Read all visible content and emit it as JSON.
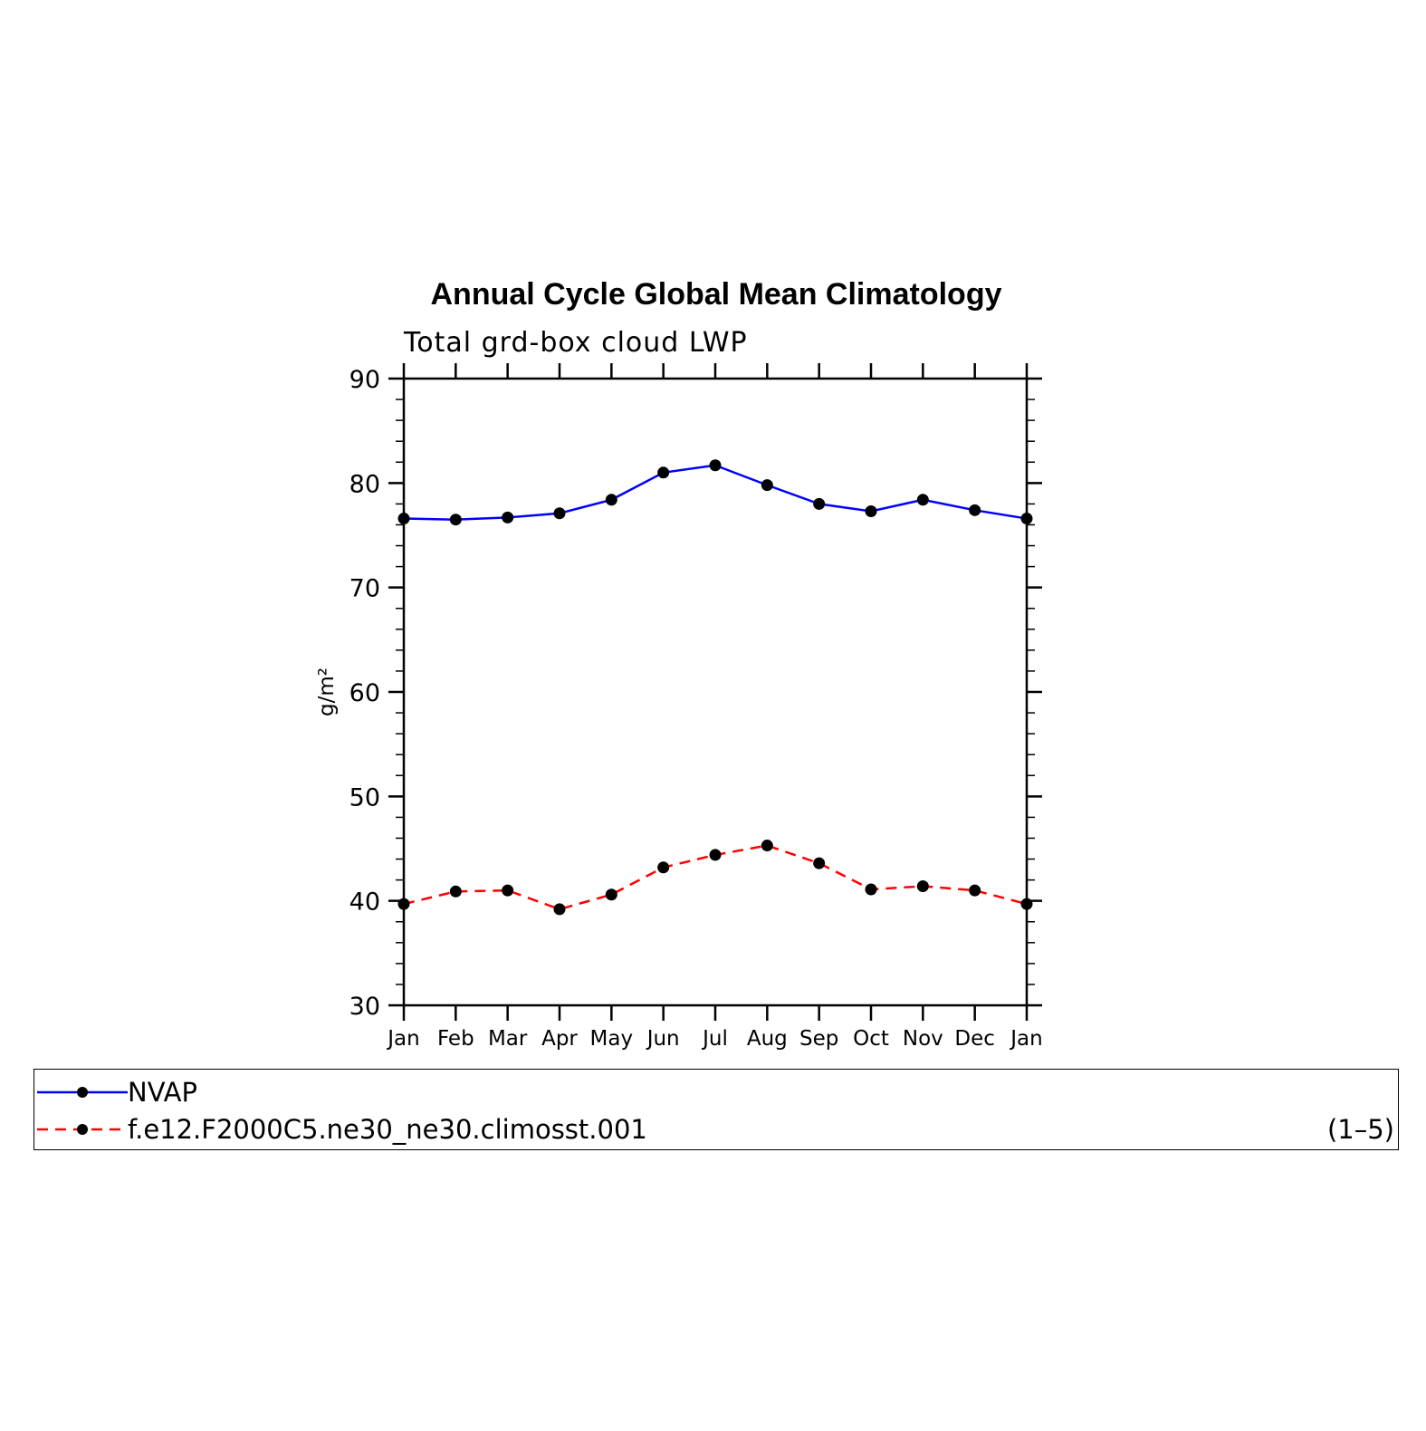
{
  "chart_data": {
    "type": "line",
    "title": "Annual Cycle Global Mean Climatology",
    "subtitle": "Total grd-box cloud LWP",
    "ylabel": "g/m²",
    "xlabel": "",
    "ylim": [
      30,
      90
    ],
    "yticks": [
      30,
      40,
      50,
      60,
      70,
      80,
      90
    ],
    "categories": [
      "Jan",
      "Feb",
      "Mar",
      "Apr",
      "May",
      "Jun",
      "Jul",
      "Aug",
      "Sep",
      "Oct",
      "Nov",
      "Dec",
      "Jan"
    ],
    "grid": false,
    "legend_placement": "bottom",
    "series": [
      {
        "name": "NVAP",
        "color": "#0000ff",
        "dash": "solid",
        "marker": "filled-circle",
        "values": [
          76.6,
          76.5,
          76.7,
          77.1,
          78.4,
          81.0,
          81.7,
          79.8,
          78.0,
          77.3,
          78.4,
          77.4,
          76.6
        ]
      },
      {
        "name": "f.e12.F2000C5.ne30_ne30.climosst.001",
        "color": "#ff0000",
        "dash": "dashed",
        "marker": "filled-circle",
        "values": [
          39.7,
          40.9,
          41.0,
          39.2,
          40.6,
          43.2,
          44.4,
          45.3,
          43.6,
          41.1,
          41.4,
          41.0,
          39.7
        ]
      }
    ]
  },
  "legend": {
    "entries": [
      {
        "label": "NVAP"
      },
      {
        "label": "f.e12.F2000C5.ne30_ne30.climosst.001"
      }
    ],
    "range_label": "(1–5)"
  }
}
